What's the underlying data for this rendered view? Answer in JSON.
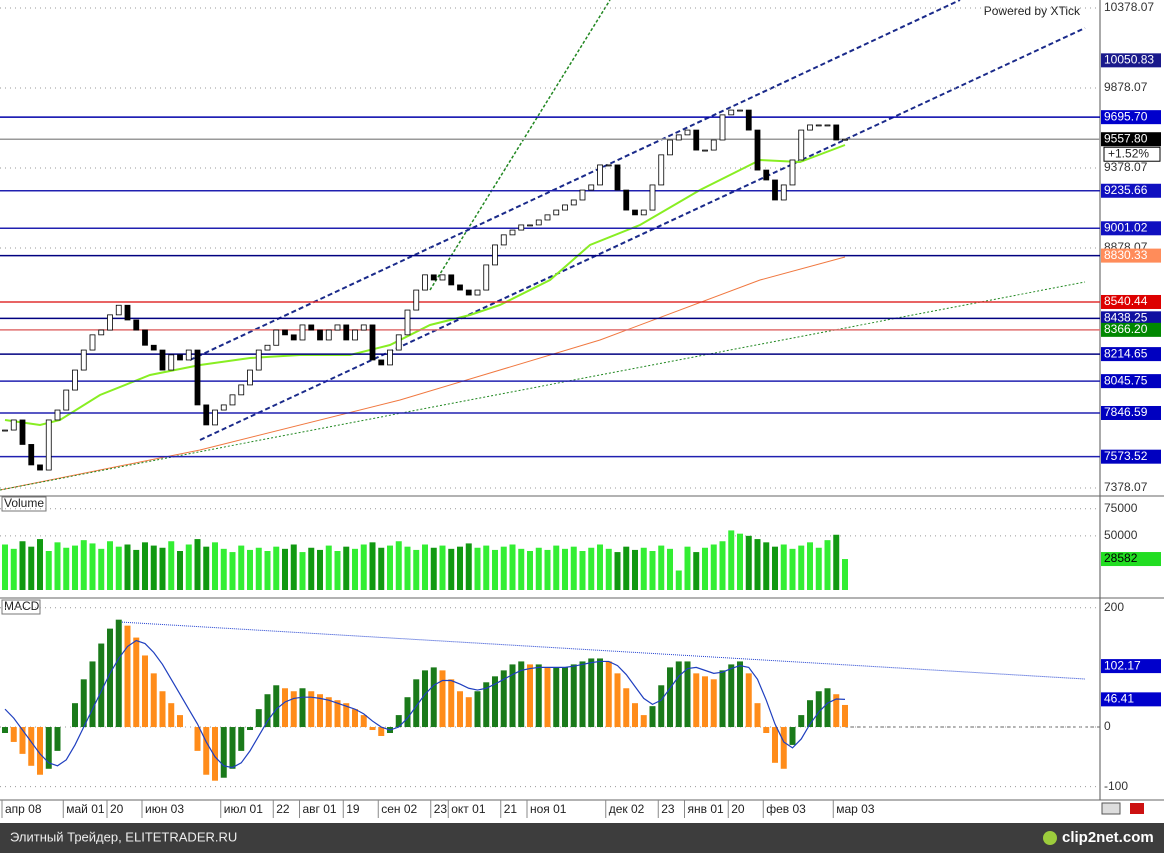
{
  "watermark": "Powered by XTick",
  "footer": {
    "left": "Элитный Трейдер, ELITETRADER.RU",
    "logo": "clip2net.com"
  },
  "chart_data": [
    {
      "type": "candlestick",
      "categories": [
        "апр 08",
        null,
        null,
        null,
        null,
        null,
        null,
        "май 01",
        null,
        null,
        null,
        null,
        "20",
        null,
        null,
        null,
        "июн 03",
        null,
        null,
        null,
        null,
        null,
        null,
        null,
        null,
        "июл 01",
        null,
        null,
        null,
        null,
        null,
        "22",
        null,
        null,
        "авг 01",
        null,
        null,
        null,
        null,
        "19",
        null,
        null,
        null,
        "сен 02",
        null,
        null,
        null,
        null,
        null,
        "23",
        null,
        "окт 01",
        null,
        null,
        null,
        null,
        null,
        "21",
        null,
        null,
        "ноя 01",
        null,
        null,
        null,
        null,
        null,
        null,
        null,
        null,
        "дек 02",
        null,
        null,
        null,
        null,
        null,
        "23",
        null,
        null,
        "янв 01",
        null,
        null,
        null,
        null,
        "20",
        null,
        null,
        null,
        "фев 03",
        null,
        null,
        null,
        null,
        null,
        null,
        null,
        "мар 03",
        null
      ],
      "values": [
        7740,
        7803,
        7650,
        7522,
        7490,
        7803,
        7865,
        7990,
        8115,
        8240,
        8335,
        8365,
        8460,
        8520,
        8428,
        8365,
        8270,
        8240,
        8115,
        8210,
        8178,
        8240,
        7897,
        7772,
        7865,
        7897,
        7960,
        8022,
        8115,
        8240,
        8270,
        8365,
        8335,
        8303,
        8397,
        8365,
        8303,
        8365,
        8397,
        8303,
        8365,
        8397,
        8178,
        8147,
        8240,
        8335,
        8490,
        8615,
        8710,
        8678,
        8710,
        8647,
        8615,
        8584,
        8615,
        8772,
        8897,
        8960,
        8990,
        9022,
        9022,
        9053,
        9085,
        9115,
        9147,
        9178,
        9240,
        9272,
        9397,
        9397,
        9240,
        9115,
        9085,
        9115,
        9272,
        9460,
        9553,
        9585,
        9615,
        9490,
        9490,
        9553,
        9710,
        9740,
        9740,
        9615,
        9365,
        9303,
        9178,
        9272,
        9428,
        9615,
        9647,
        9647,
        9647,
        9553,
        9557.8
      ],
      "up_color": "#ffffff",
      "down_color": "#000000",
      "ylim": [
        7334,
        10428
      ],
      "yticks": [
        10378.07,
        9878.07,
        9378.07,
        8878.07,
        7378.07
      ],
      "grid": true,
      "levels": [
        {
          "value": 10050.83,
          "line": null,
          "box": "#1a1a8c",
          "text": "#ffffff"
        },
        {
          "value": 9695.7,
          "label": "9695.70",
          "line": "#0000aa",
          "box": "#0000cc",
          "text": "#ffffff"
        },
        {
          "value": 9557.8,
          "label": "9557.80",
          "line": "#999999",
          "box": "#000000",
          "text": "#ffffff"
        },
        {
          "value": 9235.66,
          "line": "#2020b0",
          "box": "#1010c0",
          "text": "#ffffff"
        },
        {
          "value": 9001.02,
          "line": "#2020b0",
          "box": "#1010c0",
          "text": "#ffffff"
        },
        {
          "value": 8830.33,
          "line": "#000080",
          "box": "#ff8c5a",
          "text": "#ffffff"
        },
        {
          "value": 8540.44,
          "line": "#e03030",
          "box": "#dd0000",
          "text": "#ffffff"
        },
        {
          "value": 8438.25,
          "line": "#000080",
          "box": "#1010a0",
          "text": "#ffffff"
        },
        {
          "value": 8366.2,
          "label": "8366.20",
          "line": "#e07070",
          "box": "#008800",
          "text": "#ffffff"
        },
        {
          "value": 8214.65,
          "line": "#000080",
          "box": "#0000c0",
          "text": "#ffffff"
        },
        {
          "value": 8045.75,
          "line": "#2020b0",
          "box": "#0000c0",
          "text": "#ffffff"
        },
        {
          "value": 7846.59,
          "line": "#2020b0",
          "box": "#0000c0",
          "text": "#ffffff"
        },
        {
          "value": 7573.52,
          "line": "#2020b0",
          "box": "#0000c0",
          "text": "#ffffff"
        }
      ],
      "change": {
        "value": 1.52,
        "label": "+1.52%"
      }
    },
    {
      "type": "bar",
      "title": "Volume",
      "values": [
        42000,
        38000,
        45000,
        40000,
        47000,
        36000,
        44000,
        39000,
        41000,
        46000,
        43000,
        38000,
        45000,
        40000,
        42000,
        37000,
        44000,
        41000,
        39000,
        45000,
        36000,
        42000,
        47000,
        40000,
        44000,
        38000,
        35000,
        41000,
        37000,
        39000,
        36000,
        40000,
        38000,
        42000,
        35000,
        39000,
        37000,
        41000,
        36000,
        40000,
        38000,
        42000,
        44000,
        39000,
        41000,
        45000,
        40000,
        37000,
        42000,
        39000,
        41000,
        38000,
        40000,
        43000,
        39000,
        41000,
        37000,
        40000,
        42000,
        38000,
        36000,
        39000,
        37000,
        41000,
        38000,
        40000,
        36000,
        39000,
        42000,
        38000,
        35000,
        40000,
        37000,
        39000,
        36000,
        41000,
        38000,
        18000,
        40000,
        35000,
        39000,
        42000,
        45000,
        55000,
        52000,
        50000,
        47000,
        44000,
        40000,
        42000,
        38000,
        41000,
        44000,
        39000,
        46000,
        51000,
        28582
      ],
      "up_color": "#33ee33",
      "down_color": "#119911",
      "box": "#22dd22",
      "ylim": [
        0,
        84000
      ],
      "yticks": [
        75000,
        50000
      ]
    },
    {
      "type": "macd",
      "title": "MACD",
      "values": [
        -10,
        -25,
        -45,
        -65,
        -80,
        -70,
        -40,
        0,
        40,
        80,
        110,
        140,
        165,
        180,
        170,
        150,
        120,
        90,
        60,
        40,
        20,
        0,
        -40,
        -80,
        -90,
        -85,
        -70,
        -40,
        -5,
        30,
        55,
        70,
        65,
        60,
        65,
        60,
        55,
        50,
        45,
        40,
        30,
        20,
        -5,
        -15,
        -10,
        20,
        50,
        80,
        95,
        100,
        95,
        80,
        60,
        50,
        60,
        75,
        85,
        95,
        105,
        110,
        105,
        105,
        100,
        100,
        100,
        105,
        110,
        115,
        115,
        110,
        90,
        65,
        40,
        20,
        35,
        70,
        100,
        110,
        110,
        90,
        85,
        80,
        95,
        105,
        110,
        90,
        40,
        -10,
        -60,
        -70,
        -30,
        20,
        45,
        60,
        65,
        55,
        37
      ],
      "signal": [
        30,
        15,
        -5,
        -25,
        -45,
        -60,
        -65,
        -55,
        -30,
        0,
        30,
        60,
        90,
        115,
        135,
        145,
        140,
        125,
        105,
        80,
        55,
        30,
        5,
        -25,
        -50,
        -65,
        -68,
        -60,
        -40,
        -15,
        10,
        30,
        42,
        48,
        50,
        50,
        48,
        45,
        40,
        35,
        30,
        22,
        10,
        0,
        -5,
        0,
        15,
        35,
        55,
        70,
        78,
        78,
        72,
        65,
        62,
        65,
        72,
        80,
        88,
        95,
        98,
        100,
        100,
        100,
        100,
        102,
        105,
        108,
        110,
        110,
        103,
        88,
        68,
        48,
        38,
        45,
        65,
        85,
        98,
        100,
        95,
        90,
        92,
        98,
        103,
        100,
        80,
        45,
        5,
        -25,
        -35,
        -20,
        5,
        25,
        40,
        47,
        46.41
      ],
      "up_color": "#1a7a1a",
      "down_color": "#ff8c1a",
      "signal_color": "#1f3fbf",
      "box": "#0000cc",
      "ylim": [
        -119,
        213
      ],
      "yticks": [
        200,
        0,
        -100
      ],
      "levels": [
        {
          "value": 102.17
        }
      ]
    }
  ]
}
